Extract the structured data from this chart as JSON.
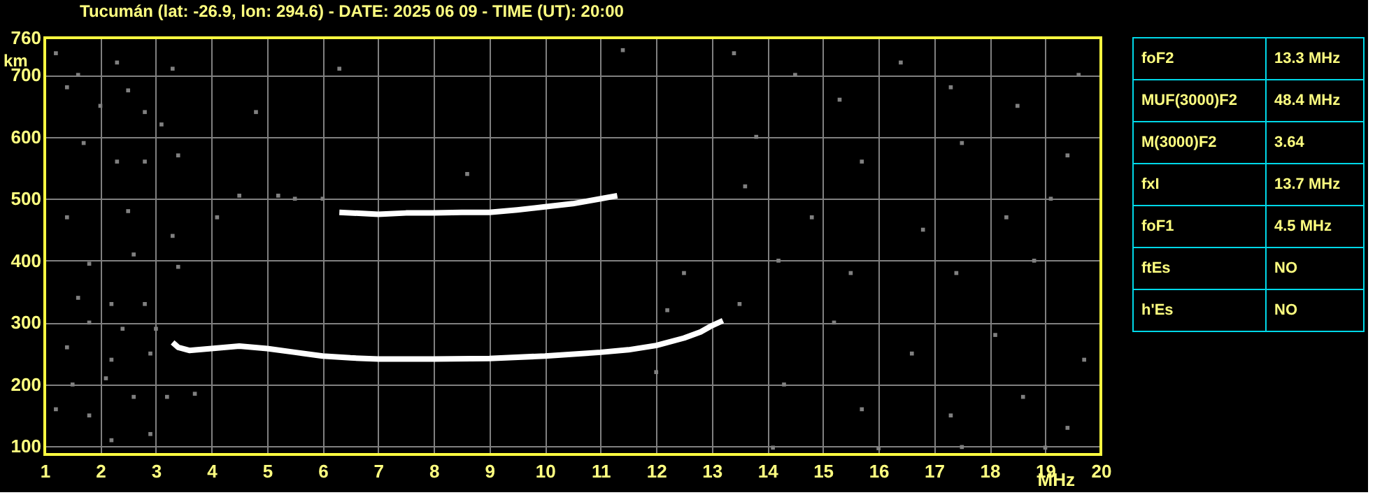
{
  "chart_data": [
    {
      "type": "scatter",
      "title": "Tucumán (lat: -26.9, lon: 294.6) - DATE: 2025 06 09 - TIME (UT): 20:00",
      "xlabel": "MHz",
      "ylabel": "km",
      "xlim": [
        1,
        20
      ],
      "ylim": [
        87,
        760
      ],
      "xticks": [
        1,
        2,
        3,
        4,
        5,
        6,
        7,
        8,
        9,
        10,
        11,
        12,
        13,
        14,
        15,
        16,
        17,
        18,
        19,
        20
      ],
      "yticks": [
        100,
        200,
        300,
        400,
        500,
        600,
        700,
        760
      ],
      "grid": true,
      "series": [
        {
          "type": "line",
          "color": "#ffffff",
          "marker": "none",
          "x": [
            3.3,
            3.4,
            3.6,
            4,
            4.5,
            5,
            5.5,
            6,
            6.5,
            7,
            8,
            9,
            10,
            11,
            11.5,
            12,
            12.5,
            12.8,
            13,
            13.2
          ],
          "values": [
            268,
            260,
            255,
            258,
            262,
            258,
            252,
            246,
            243,
            241,
            241,
            242,
            246,
            252,
            256,
            263,
            275,
            285,
            295,
            303
          ]
        },
        {
          "type": "line",
          "color": "#ffffff",
          "marker": "none",
          "x": [
            6.3,
            7,
            7.5,
            8,
            8.5,
            9,
            9.5,
            10,
            10.5,
            11,
            11.3
          ],
          "values": [
            478,
            475,
            477,
            477,
            478,
            478,
            482,
            487,
            492,
            500,
            505
          ]
        },
        {
          "type": "scatter",
          "color": "#808080",
          "marker": "square",
          "x": [
            1.2,
            1.4,
            1.6,
            2.0,
            2.3,
            2.5,
            2.8,
            3.1,
            3.3,
            1.7,
            2.3,
            2.8,
            3.4,
            1.4,
            2.5,
            3.3,
            1.8,
            2.6,
            3.4,
            1.6,
            2.2,
            2.8,
            1.8,
            2.4,
            3.0,
            1.4,
            2.2,
            2.9,
            1.5,
            2.1,
            2.6,
            3.2,
            1.2,
            1.8,
            2.2,
            2.9,
            3.7,
            4.1,
            4.8,
            5.5,
            4.5,
            5.2,
            6.0,
            8.6,
            6.3,
            11.4,
            13.4,
            14.5,
            15.3,
            16.4,
            17.3,
            18.5,
            19.6,
            13.8,
            15.7,
            17.5,
            19.4,
            13.6,
            14.8,
            16.8,
            18.3,
            19.1,
            14.2,
            15.5,
            17.4,
            18.8,
            13.5,
            15.2,
            16.6,
            18.1,
            19.7,
            14.3,
            15.7,
            17.3,
            18.6,
            19.4,
            14.1,
            16.0,
            17.5,
            19.0,
            12.5,
            12.2,
            12.0
          ],
          "values": [
            735,
            680,
            700,
            650,
            720,
            675,
            640,
            620,
            710,
            590,
            560,
            560,
            570,
            470,
            480,
            440,
            395,
            410,
            390,
            340,
            330,
            330,
            300,
            290,
            290,
            260,
            240,
            250,
            200,
            210,
            180,
            180,
            160,
            150,
            110,
            120,
            185,
            470,
            640,
            500,
            505,
            505,
            500,
            540,
            710,
            740,
            735,
            700,
            660,
            720,
            680,
            650,
            700,
            600,
            560,
            590,
            570,
            520,
            470,
            450,
            470,
            500,
            400,
            380,
            380,
            400,
            330,
            300,
            250,
            280,
            240,
            200,
            160,
            150,
            180,
            130,
            98,
            97,
            99,
            98,
            380,
            320,
            220
          ]
        }
      ]
    },
    {
      "type": "other",
      "annotations": [
        "foF2",
        "13.3 MHz",
        "MUF(3000)F2",
        "48.4 MHz",
        "M(3000)F2",
        "3.64",
        "fxI",
        "13.7 MHz",
        "foF1",
        "4.5 MHz",
        "ftEs",
        "NO",
        "h'Es",
        "NO"
      ]
    }
  ]
}
